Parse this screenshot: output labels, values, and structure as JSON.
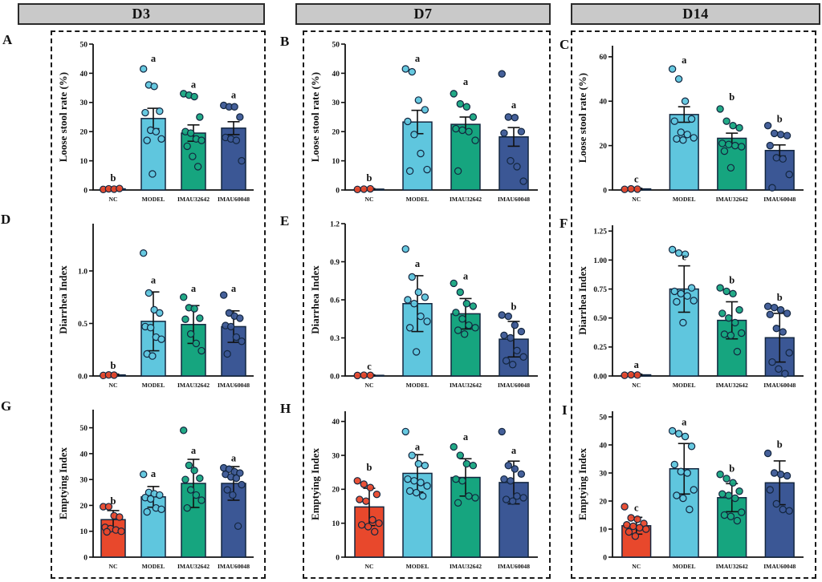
{
  "figure": {
    "column_headers": [
      {
        "label": "D3"
      },
      {
        "label": "D7"
      },
      {
        "label": "D14"
      }
    ],
    "groups": [
      "NC",
      "MODEL",
      "IMAU32642",
      "IMAU60048"
    ],
    "group_colors": [
      "#E8482C",
      "#5FC6DE",
      "#16A57F",
      "#3B5795"
    ],
    "bar_border_color": "#13263F",
    "point_border_color": "#13263F",
    "error_bar_color": "#111111",
    "axis_color": "#111111",
    "header_bg": "#C9C9C9",
    "dashed_border_color": "#1A1A1A"
  },
  "chart_data": [
    {
      "type": "bar",
      "panel_label": "A",
      "column": "D3",
      "ylabel": "Loose stool rate (%)",
      "ylim": [
        0,
        50
      ],
      "yticks": [
        "0",
        "10",
        "20",
        "30",
        "40",
        "50"
      ],
      "categories": [
        "NC",
        "MODEL",
        "IMAU32642",
        "IMAU60048"
      ],
      "values": [
        0.4,
        24.5,
        19.5,
        21.2
      ],
      "errors": [
        0.3,
        3.5,
        2.8,
        2.2
      ],
      "sig_letters": [
        "b",
        "a",
        "a",
        "a"
      ],
      "letter_y": [
        3.0,
        44.0,
        35.0,
        31.5
      ],
      "points": [
        [
          0.2,
          0.4,
          0.3,
          0.5
        ],
        [
          41.5,
          36.0,
          35.5,
          27.0,
          26.5,
          20.5,
          20.0,
          17.5,
          17.0,
          5.5
        ],
        [
          33.0,
          32.5,
          32.0,
          25.0,
          20.0,
          19.5,
          17.5,
          17.0,
          15.0,
          11.5,
          8.0
        ],
        [
          29.0,
          28.5,
          28.5,
          25.0,
          18.0,
          17.5,
          17.0,
          10.0
        ]
      ]
    },
    {
      "type": "bar",
      "panel_label": "B",
      "column": "D7",
      "ylabel": "Loose stool rate (%)",
      "ylim": [
        0,
        50
      ],
      "yticks": [
        "0",
        "10",
        "20",
        "30",
        "40",
        "50"
      ],
      "categories": [
        "NC",
        "MODEL",
        "IMAU32642",
        "IMAU60048"
      ],
      "values": [
        0.3,
        23.3,
        22.5,
        18.2
      ],
      "errors": [
        0.2,
        4.0,
        2.5,
        3.2
      ],
      "sig_letters": [
        "b",
        "a",
        "a",
        "a"
      ],
      "letter_y": [
        3.0,
        44.0,
        36.0,
        28.0
      ],
      "points": [
        [
          0.2,
          0.3,
          0.4
        ],
        [
          41.5,
          40.5,
          30.8,
          27.5,
          23.5,
          19.0,
          12.5,
          7.0,
          6.5
        ],
        [
          33.0,
          29.5,
          28.5,
          25.0,
          21.0,
          20.5,
          20.0,
          17.0,
          6.5
        ],
        [
          39.8,
          25.0,
          24.8,
          20.0,
          19.5,
          10.0,
          8.0,
          3.0
        ]
      ]
    },
    {
      "type": "bar",
      "panel_label": "C",
      "column": "D14",
      "ylabel": "Loose stool rate (%)",
      "ylim": [
        0,
        65
      ],
      "yticks": [
        "0",
        "20",
        "40",
        "60"
      ],
      "categories": [
        "NC",
        "MODEL",
        "IMAU32642",
        "IMAU60048"
      ],
      "values": [
        0.5,
        34.0,
        23.3,
        17.8
      ],
      "errors": [
        0.3,
        3.5,
        2.3,
        2.5
      ],
      "sig_letters": [
        "c",
        "a",
        "b",
        "b"
      ],
      "letter_y": [
        3.5,
        57.0,
        40.5,
        30.5
      ],
      "points": [
        [
          0.3,
          0.5,
          0.4
        ],
        [
          54.5,
          50.0,
          40.0,
          32.0,
          31.0,
          26.0,
          25.0,
          23.5,
          23.0,
          22.5
        ],
        [
          36.5,
          31.0,
          29.0,
          28.0,
          21.0,
          20.5,
          20.0,
          19.5,
          17.5,
          10.0
        ],
        [
          29.0,
          25.5,
          25.0,
          24.5,
          20.0,
          14.5,
          14.0,
          7.0,
          1.0
        ]
      ]
    },
    {
      "type": "bar",
      "panel_label": "D",
      "column": "D3",
      "ylabel": "Diarrhea Index",
      "ylim": [
        0,
        1.45
      ],
      "yticks": [
        "0.0",
        "0.5",
        "1.0"
      ],
      "categories": [
        "NC",
        "MODEL",
        "IMAU32642",
        "IMAU60048"
      ],
      "values": [
        0.01,
        0.52,
        0.49,
        0.47
      ],
      "errors": [
        0.008,
        0.28,
        0.18,
        0.15
      ],
      "sig_letters": [
        "b",
        "a",
        "a",
        "a"
      ],
      "letter_y": [
        0.07,
        0.88,
        0.8,
        0.8
      ],
      "points": [
        [
          0.005,
          0.01,
          0.008
        ],
        [
          1.17,
          0.79,
          0.63,
          0.6,
          0.47,
          0.46,
          0.37,
          0.35,
          0.21,
          0.19
        ],
        [
          0.75,
          0.65,
          0.64,
          0.55,
          0.54,
          0.4,
          0.31,
          0.24
        ],
        [
          0.77,
          0.6,
          0.57,
          0.55,
          0.48,
          0.47,
          0.37,
          0.33,
          0.21
        ]
      ]
    },
    {
      "type": "bar",
      "panel_label": "E",
      "column": "D7",
      "ylabel": "Diarrhea Index",
      "ylim": [
        0,
        1.2
      ],
      "yticks": [
        "0.0",
        "0.3",
        "0.6",
        "0.9",
        "1.2"
      ],
      "categories": [
        "NC",
        "MODEL",
        "IMAU32642",
        "IMAU60048"
      ],
      "values": [
        0.005,
        0.57,
        0.49,
        0.29
      ],
      "errors": [
        0.004,
        0.22,
        0.12,
        0.14
      ],
      "sig_letters": [
        "c",
        "a",
        "a",
        "b"
      ],
      "letter_y": [
        0.05,
        0.86,
        0.76,
        0.52
      ],
      "points": [
        [
          0.004,
          0.006,
          0.005
        ],
        [
          1.0,
          0.78,
          0.66,
          0.62,
          0.6,
          0.57,
          0.47,
          0.43,
          0.38,
          0.19
        ],
        [
          0.73,
          0.66,
          0.57,
          0.55,
          0.5,
          0.45,
          0.4,
          0.38,
          0.36,
          0.33
        ],
        [
          0.48,
          0.47,
          0.4,
          0.35,
          0.32,
          0.3,
          0.2,
          0.15,
          0.12,
          0.09
        ]
      ]
    },
    {
      "type": "bar",
      "panel_label": "F",
      "column": "D14",
      "ylabel": "Diarrhea Index",
      "ylim": [
        0,
        1.3
      ],
      "yticks": [
        "0.00",
        "0.25",
        "0.50",
        "0.75",
        "1.00",
        "1.25"
      ],
      "categories": [
        "NC",
        "MODEL",
        "IMAU32642",
        "IMAU60048"
      ],
      "values": [
        0.01,
        0.75,
        0.48,
        0.33
      ],
      "errors": [
        0.006,
        0.2,
        0.16,
        0.21
      ],
      "sig_letters": [
        "a",
        "c",
        "b",
        "b"
      ],
      "letter_y": [
        0.07,
        1.0,
        0.8,
        0.65
      ],
      "points": [
        [
          0.006,
          0.01,
          0.008
        ],
        [
          1.09,
          1.06,
          1.05,
          0.76,
          0.73,
          0.71,
          0.69,
          0.65,
          0.64,
          0.46
        ],
        [
          0.76,
          0.73,
          0.71,
          0.57,
          0.54,
          0.5,
          0.46,
          0.37,
          0.36,
          0.35,
          0.21
        ],
        [
          0.6,
          0.59,
          0.57,
          0.54,
          0.53,
          0.41,
          0.38,
          0.2,
          0.12,
          0.06,
          0.02
        ]
      ]
    },
    {
      "type": "bar",
      "panel_label": "G",
      "column": "D3",
      "ylabel": "Emptying Index",
      "ylim": [
        0,
        57
      ],
      "yticks": [
        "0",
        "10",
        "20",
        "30",
        "40",
        "50"
      ],
      "categories": [
        "NC",
        "MODEL",
        "IMAU32642",
        "IMAU60048"
      ],
      "values": [
        14.5,
        23.3,
        28.5,
        28.5
      ],
      "errors": [
        3.5,
        4.0,
        9.3,
        6.5
      ],
      "sig_letters": [
        "b",
        "a",
        "a",
        "a"
      ],
      "letter_y": [
        20.5,
        31.0,
        40.0,
        37.0
      ],
      "points": [
        [
          19.5,
          19.5,
          16.0,
          15.5,
          11.5,
          11.0,
          10.5,
          10.0,
          9.8
        ],
        [
          32.0,
          25.0,
          24.5,
          24.0,
          23.0,
          22.5,
          19.0,
          18.5,
          17.5
        ],
        [
          49.0,
          35.5,
          33.5,
          30.5,
          30.0,
          26.0,
          24.0,
          22.0,
          19.0
        ],
        [
          34.5,
          34.0,
          33.0,
          32.5,
          32.0,
          31.0,
          30.5,
          28.0,
          26.0,
          24.0,
          12.0
        ]
      ]
    },
    {
      "type": "bar",
      "panel_label": "H",
      "column": "D7",
      "ylabel": "Emptying Index",
      "ylim": [
        0,
        43
      ],
      "yticks": [
        "0",
        "10",
        "20",
        "30",
        "40"
      ],
      "categories": [
        "NC",
        "MODEL",
        "IMAU32642",
        "IMAU60048"
      ],
      "values": [
        14.8,
        24.7,
        23.5,
        22.0
      ],
      "errors": [
        5.5,
        5.5,
        5.5,
        6.3
      ],
      "sig_letters": [
        "b",
        "a",
        "a",
        "a"
      ],
      "letter_y": [
        25.5,
        31.5,
        34.5,
        30.5
      ],
      "points": [
        [
          22.5,
          21.5,
          20.5,
          18.5,
          17.0,
          16.5,
          11.0,
          10.0,
          9.5,
          9.0,
          7.5
        ],
        [
          37.0,
          30.0,
          27.5,
          27.0,
          23.0,
          22.5,
          22.0,
          21.0,
          19.5,
          19.0,
          18.0
        ],
        [
          32.5,
          30.0,
          27.5,
          27.0,
          23.0,
          22.5,
          18.0,
          17.5,
          16.0
        ],
        [
          37.0,
          27.0,
          26.0,
          24.5,
          23.0,
          22.5,
          18.0,
          17.5,
          17.0,
          16.5
        ]
      ]
    },
    {
      "type": "bar",
      "panel_label": "I",
      "column": "D14",
      "ylabel": "Emptying Index",
      "ylim": [
        0,
        52
      ],
      "yticks": [
        "0",
        "10",
        "20",
        "30",
        "40",
        "50"
      ],
      "categories": [
        "NC",
        "MODEL",
        "IMAU32642",
        "IMAU60048"
      ],
      "values": [
        11.2,
        31.5,
        21.2,
        26.5
      ],
      "errors": [
        3.0,
        9.0,
        5.0,
        7.8
      ],
      "sig_letters": [
        "c",
        "a",
        "b",
        "b"
      ],
      "letter_y": [
        16.5,
        47.0,
        30.5,
        39.0
      ],
      "points": [
        [
          18.0,
          14.0,
          13.5,
          12.0,
          11.5,
          11.0,
          10.5,
          10.0,
          9.0,
          7.5
        ],
        [
          45.0,
          44.0,
          43.0,
          39.5,
          33.0,
          30.5,
          30.0,
          24.0,
          22.0,
          21.0,
          17.0
        ],
        [
          29.5,
          28.0,
          26.5,
          23.5,
          22.5,
          22.0,
          21.0,
          16.0,
          15.0,
          14.5,
          13.0
        ],
        [
          37.0,
          30.0,
          29.5,
          29.0,
          24.0,
          19.0,
          17.0,
          16.5
        ]
      ]
    }
  ]
}
